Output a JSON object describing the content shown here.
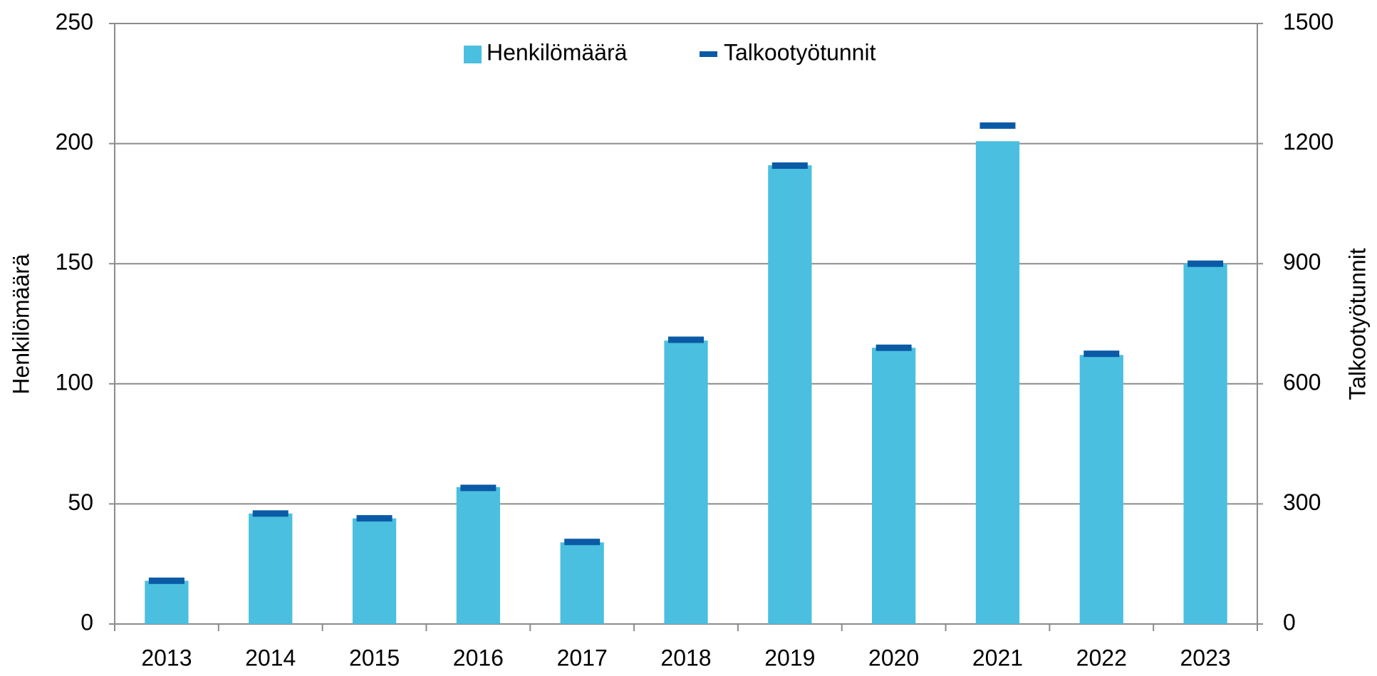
{
  "chart_data": {
    "type": "bar",
    "categories": [
      "2013",
      "2014",
      "2015",
      "2016",
      "2017",
      "2018",
      "2019",
      "2020",
      "2021",
      "2022",
      "2023"
    ],
    "series": [
      {
        "name": "Henkilömäärä",
        "color": "#4bbfe0",
        "values": [
          18,
          46,
          44,
          57,
          34,
          118,
          191,
          115,
          201,
          112,
          150
        ]
      },
      {
        "name": "Talkootyötunnit",
        "color": "#0a5aa6",
        "axis": "y2",
        "values": [
          108,
          276,
          264,
          340,
          205,
          710,
          1145,
          690,
          1245,
          675,
          900
        ]
      }
    ],
    "ylabel": "Henkilömäärä",
    "y2label": "Talkootyötunnit",
    "ylim": [
      0,
      250
    ],
    "yticks": [
      0,
      50,
      100,
      150,
      200,
      250
    ],
    "y2lim": [
      0,
      1500
    ],
    "y2ticks": [
      0,
      300,
      600,
      900,
      1200,
      1500
    ],
    "grid": true,
    "legend": "top"
  }
}
